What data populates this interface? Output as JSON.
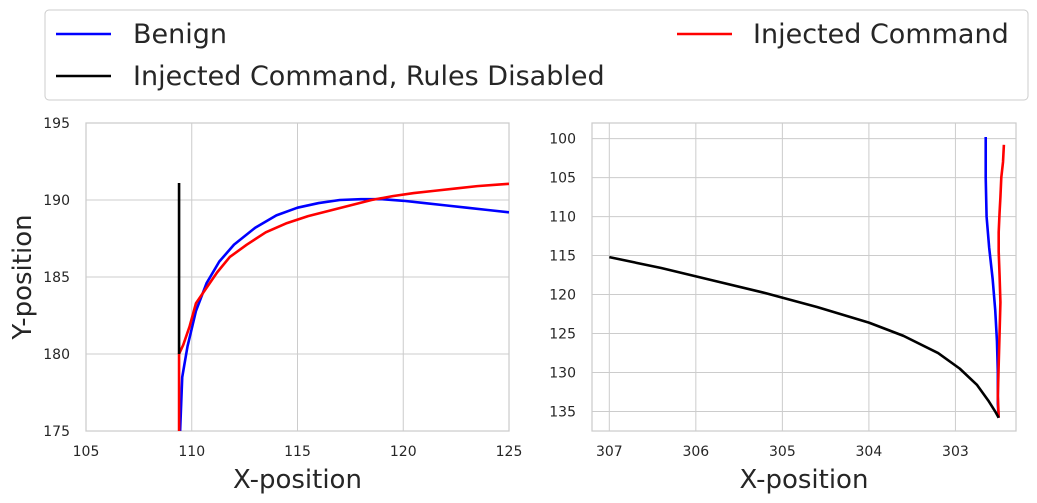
{
  "legend": {
    "entries": [
      {
        "label": "Benign",
        "color": "#0000ff"
      },
      {
        "label": "Injected Command",
        "color": "#ff0000"
      },
      {
        "label": "Injected Command, Rules Disabled",
        "color": "#000000"
      }
    ]
  },
  "chart_data": [
    {
      "type": "line",
      "xlabel": "X-position",
      "ylabel": "Y-position",
      "xlim": [
        105,
        125
      ],
      "ylim": [
        175,
        195
      ],
      "x_inverted": false,
      "y_inverted": false,
      "xticks": [
        105,
        110,
        115,
        120,
        125
      ],
      "yticks": [
        175,
        180,
        185,
        190,
        195
      ],
      "grid": true,
      "series": [
        {
          "name": "Benign",
          "color": "#0000ff",
          "points": [
            [
              109.45,
              175.0
            ],
            [
              109.55,
              178.5
            ],
            [
              109.8,
              180.5
            ],
            [
              110.2,
              182.8
            ],
            [
              110.7,
              184.6
            ],
            [
              111.3,
              186.0
            ],
            [
              112.0,
              187.1
            ],
            [
              113.0,
              188.2
            ],
            [
              114.0,
              189.0
            ],
            [
              115.0,
              189.5
            ],
            [
              116.0,
              189.8
            ],
            [
              117.0,
              190.0
            ],
            [
              118.0,
              190.05
            ],
            [
              119.0,
              190.05
            ],
            [
              120.0,
              189.95
            ],
            [
              121.0,
              189.8
            ],
            [
              122.0,
              189.65
            ],
            [
              123.0,
              189.5
            ],
            [
              124.0,
              189.35
            ],
            [
              125.0,
              189.2
            ]
          ]
        },
        {
          "name": "Injected Command",
          "color": "#ff0000",
          "points": [
            [
              109.4,
              175.0
            ],
            [
              109.4,
              180.0
            ],
            [
              109.6,
              180.6
            ],
            [
              109.9,
              181.8
            ],
            [
              110.2,
              183.3
            ],
            [
              110.6,
              184.1
            ],
            [
              111.2,
              185.3
            ],
            [
              111.8,
              186.3
            ],
            [
              112.6,
              187.1
            ],
            [
              113.5,
              187.9
            ],
            [
              114.5,
              188.5
            ],
            [
              115.5,
              188.95
            ],
            [
              116.5,
              189.3
            ],
            [
              117.5,
              189.65
            ],
            [
              118.5,
              190.0
            ],
            [
              119.5,
              190.25
            ],
            [
              120.5,
              190.45
            ],
            [
              121.5,
              190.6
            ],
            [
              122.5,
              190.75
            ],
            [
              123.5,
              190.9
            ],
            [
              124.5,
              191.0
            ],
            [
              125.0,
              191.05
            ]
          ]
        },
        {
          "name": "Injected Command, Rules Disabled",
          "color": "#000000",
          "points": [
            [
              109.4,
              180.0
            ],
            [
              109.4,
              191.1
            ]
          ]
        }
      ]
    },
    {
      "type": "line",
      "xlabel": "X-position",
      "ylabel": "",
      "xlim": [
        307.2,
        302.3
      ],
      "ylim": [
        137.5,
        98.0
      ],
      "x_inverted": true,
      "y_inverted": true,
      "xticks": [
        307,
        306,
        305,
        304,
        303
      ],
      "yticks": [
        100,
        105,
        110,
        115,
        120,
        125,
        130,
        135
      ],
      "grid": true,
      "series": [
        {
          "name": "Benign",
          "color": "#0000ff",
          "points": [
            [
              302.65,
              99.8
            ],
            [
              302.65,
              105.0
            ],
            [
              302.64,
              110.0
            ],
            [
              302.61,
              114.0
            ],
            [
              302.57,
              118.0
            ],
            [
              302.54,
              122.0
            ],
            [
              302.52,
              126.0
            ],
            [
              302.51,
              130.0
            ],
            [
              302.51,
              134.0
            ],
            [
              302.5,
              135.8
            ]
          ]
        },
        {
          "name": "Injected Command",
          "color": "#ff0000",
          "points": [
            [
              302.44,
              100.8
            ],
            [
              302.45,
              103.0
            ],
            [
              302.47,
              105.0
            ],
            [
              302.48,
              107.5
            ],
            [
              302.49,
              109.5
            ],
            [
              302.5,
              112.0
            ],
            [
              302.5,
              114.5
            ],
            [
              302.49,
              117.5
            ],
            [
              302.48,
              121.0
            ],
            [
              302.49,
              125.0
            ],
            [
              302.5,
              129.0
            ],
            [
              302.51,
              133.0
            ],
            [
              302.5,
              135.8
            ]
          ]
        },
        {
          "name": "Injected Command, Rules Disabled",
          "color": "#000000",
          "points": [
            [
              307.0,
              115.2
            ],
            [
              306.4,
              116.6
            ],
            [
              305.8,
              118.2
            ],
            [
              305.2,
              119.8
            ],
            [
              304.6,
              121.6
            ],
            [
              304.0,
              123.6
            ],
            [
              303.6,
              125.3
            ],
            [
              303.2,
              127.5
            ],
            [
              302.95,
              129.5
            ],
            [
              302.75,
              131.6
            ],
            [
              302.62,
              133.6
            ],
            [
              302.54,
              135.0
            ],
            [
              302.5,
              135.8
            ]
          ]
        }
      ]
    }
  ]
}
